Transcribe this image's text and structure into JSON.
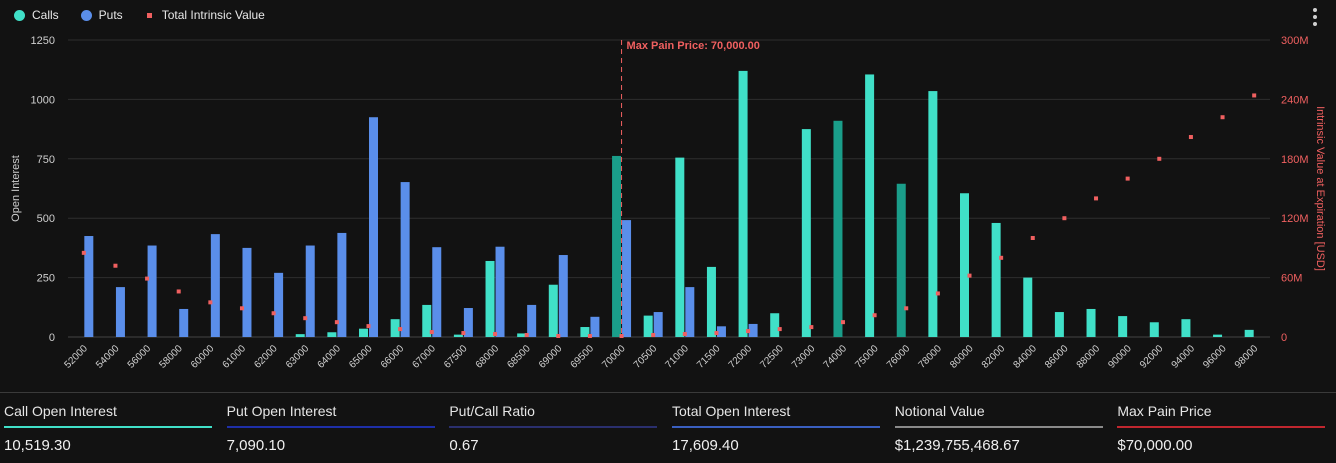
{
  "legend": {
    "calls_label": "Calls",
    "puts_label": "Puts",
    "intrinsic_label": "Total Intrinsic Value"
  },
  "colors": {
    "calls": "#40E0C8",
    "calls_dark": "#1A9E8A",
    "puts": "#5A8EEA",
    "intrinsic": "#F06060",
    "maxpain": "#F06060",
    "grid": "#2e2e2e",
    "axis_text": "#cfcfcf"
  },
  "chart_data": {
    "type": "bar",
    "title": "",
    "xlabel": "",
    "ylabel": "Open Interest",
    "y2label": "Intrinsic Value at Expiration [USD]",
    "ylim": [
      0,
      1250
    ],
    "y2lim": [
      0,
      300
    ],
    "yticks": [
      0,
      250,
      500,
      750,
      1000,
      1250
    ],
    "yticks_labels": [
      "0",
      "250",
      "500",
      "750",
      "1000",
      "1250"
    ],
    "y2ticks": [
      0,
      60,
      120,
      180,
      240,
      300
    ],
    "y2ticks_labels": [
      "0",
      "60M",
      "120M",
      "180M",
      "240M",
      "300M"
    ],
    "categories": [
      "52000",
      "54000",
      "56000",
      "58000",
      "60000",
      "61000",
      "62000",
      "63000",
      "64000",
      "65000",
      "66000",
      "67000",
      "67500",
      "68000",
      "68500",
      "69000",
      "69500",
      "70000",
      "70500",
      "71000",
      "71500",
      "72000",
      "72500",
      "73000",
      "74000",
      "75000",
      "76000",
      "78000",
      "80000",
      "82000",
      "84000",
      "86000",
      "88000",
      "90000",
      "92000",
      "94000",
      "96000",
      "98000"
    ],
    "series": [
      {
        "name": "Calls",
        "values": [
          0,
          0,
          0,
          0,
          0,
          0,
          0,
          12,
          20,
          35,
          75,
          135,
          10,
          320,
          15,
          220,
          42,
          762,
          90,
          755,
          295,
          1120,
          100,
          875,
          910,
          1105,
          645,
          1035,
          605,
          480,
          250,
          105,
          118,
          88,
          62,
          75,
          10,
          30
        ]
      },
      {
        "name": "Puts",
        "values": [
          425,
          210,
          385,
          118,
          433,
          375,
          270,
          385,
          438,
          925,
          652,
          378,
          122,
          380,
          135,
          345,
          85,
          492,
          105,
          210,
          45,
          55,
          0,
          0,
          0,
          0,
          0,
          0,
          0,
          0,
          0,
          0,
          0,
          0,
          0,
          0,
          0,
          0
        ]
      },
      {
        "name": "Total Intrinsic Value",
        "unit": "M USD",
        "values": [
          85,
          72,
          59,
          46,
          35,
          29,
          24,
          19,
          15,
          11,
          8,
          5,
          4,
          3,
          2,
          1,
          1,
          1,
          2,
          3,
          4,
          6,
          8,
          10,
          15,
          22,
          29,
          44,
          62,
          80,
          100,
          120,
          140,
          160,
          180,
          202,
          222,
          244
        ]
      }
    ],
    "highlight_call_bars": [
      "70000",
      "74000",
      "76000"
    ],
    "max_pain": {
      "strike": "70000",
      "label": "Max Pain Price: 70,000.00"
    }
  },
  "stats": [
    {
      "label": "Call Open Interest",
      "value": "10,519.30",
      "bar_color": "#40E0C8"
    },
    {
      "label": "Put Open Interest",
      "value": "7,090.10",
      "bar_color": "#1E2FA8"
    },
    {
      "label": "Put/Call Ratio",
      "value": "0.67",
      "bar_color": "#2A2F6E"
    },
    {
      "label": "Total Open Interest",
      "value": "17,609.40",
      "bar_color": "#3A5FC0"
    },
    {
      "label": "Notional Value",
      "value": "$1,239,755,468.67",
      "bar_color": "#8A8A8A"
    },
    {
      "label": "Max Pain Price",
      "value": "$70,000.00",
      "bar_color": "#C0262E"
    }
  ]
}
